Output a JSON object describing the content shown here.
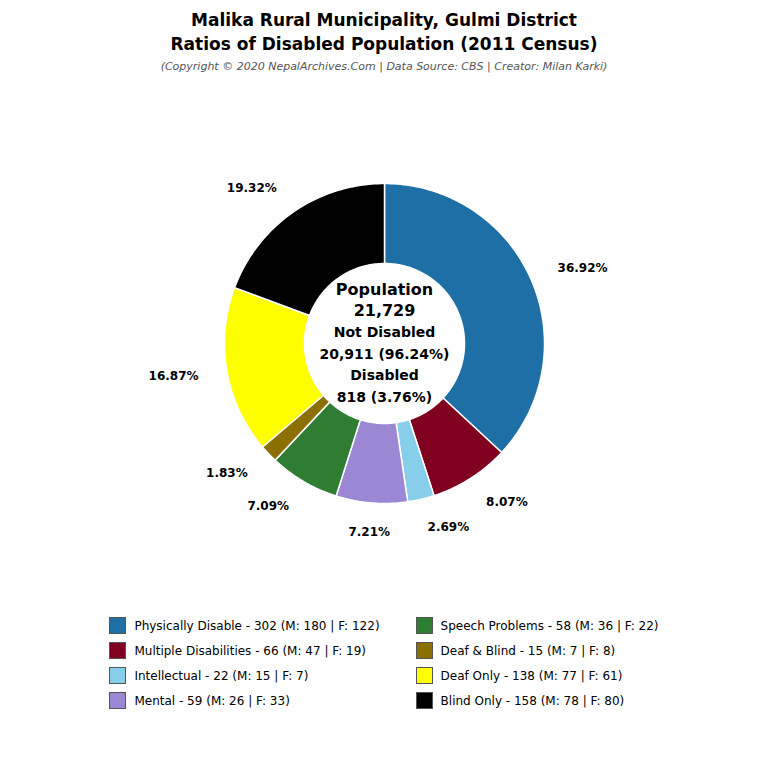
{
  "chart_data": {
    "type": "pie",
    "title": [
      "Malika Rural Municipality, Gulmi District",
      "Ratios of Disabled Population (2011 Census)"
    ],
    "subtitle": "(Copyright © 2020 NepalArchives.Com | Data Source: CBS | Creator: Milan Karki)",
    "categories": [
      "Physically Disable - 302 (M: 180 | F: 122)",
      "Multiple Disabilities - 66 (M: 47 | F: 19)",
      "Intellectual - 22 (M: 15 | F: 7)",
      "Mental - 59 (M: 26 | F: 33)",
      "Speech Problems - 58 (M: 36 | F: 22)",
      "Deaf & Blind - 15 (M: 7 | F: 8)",
      "Deaf Only - 138 (M: 77 | F: 61)",
      "Blind Only - 158 (M: 78 | F: 80)"
    ],
    "values": [
      36.92,
      8.07,
      2.69,
      7.21,
      7.09,
      1.83,
      16.87,
      19.32
    ],
    "value_labels": [
      "36.92%",
      "8.07%",
      "2.69%",
      "7.21%",
      "7.09%",
      "1.83%",
      "16.87%",
      "19.32%"
    ],
    "colors": [
      "#1e6fa5",
      "#800020",
      "#87ceeb",
      "#9b87d4",
      "#2e7d32",
      "#8B7000",
      "#ffff00",
      "#000000"
    ],
    "data_labels": true,
    "legend": "bottom",
    "annotations": [
      "Population",
      "21,729",
      "Not Disabled",
      "20,911 (96.24%)",
      "Disabled",
      "818 (3.76%)"
    ]
  }
}
